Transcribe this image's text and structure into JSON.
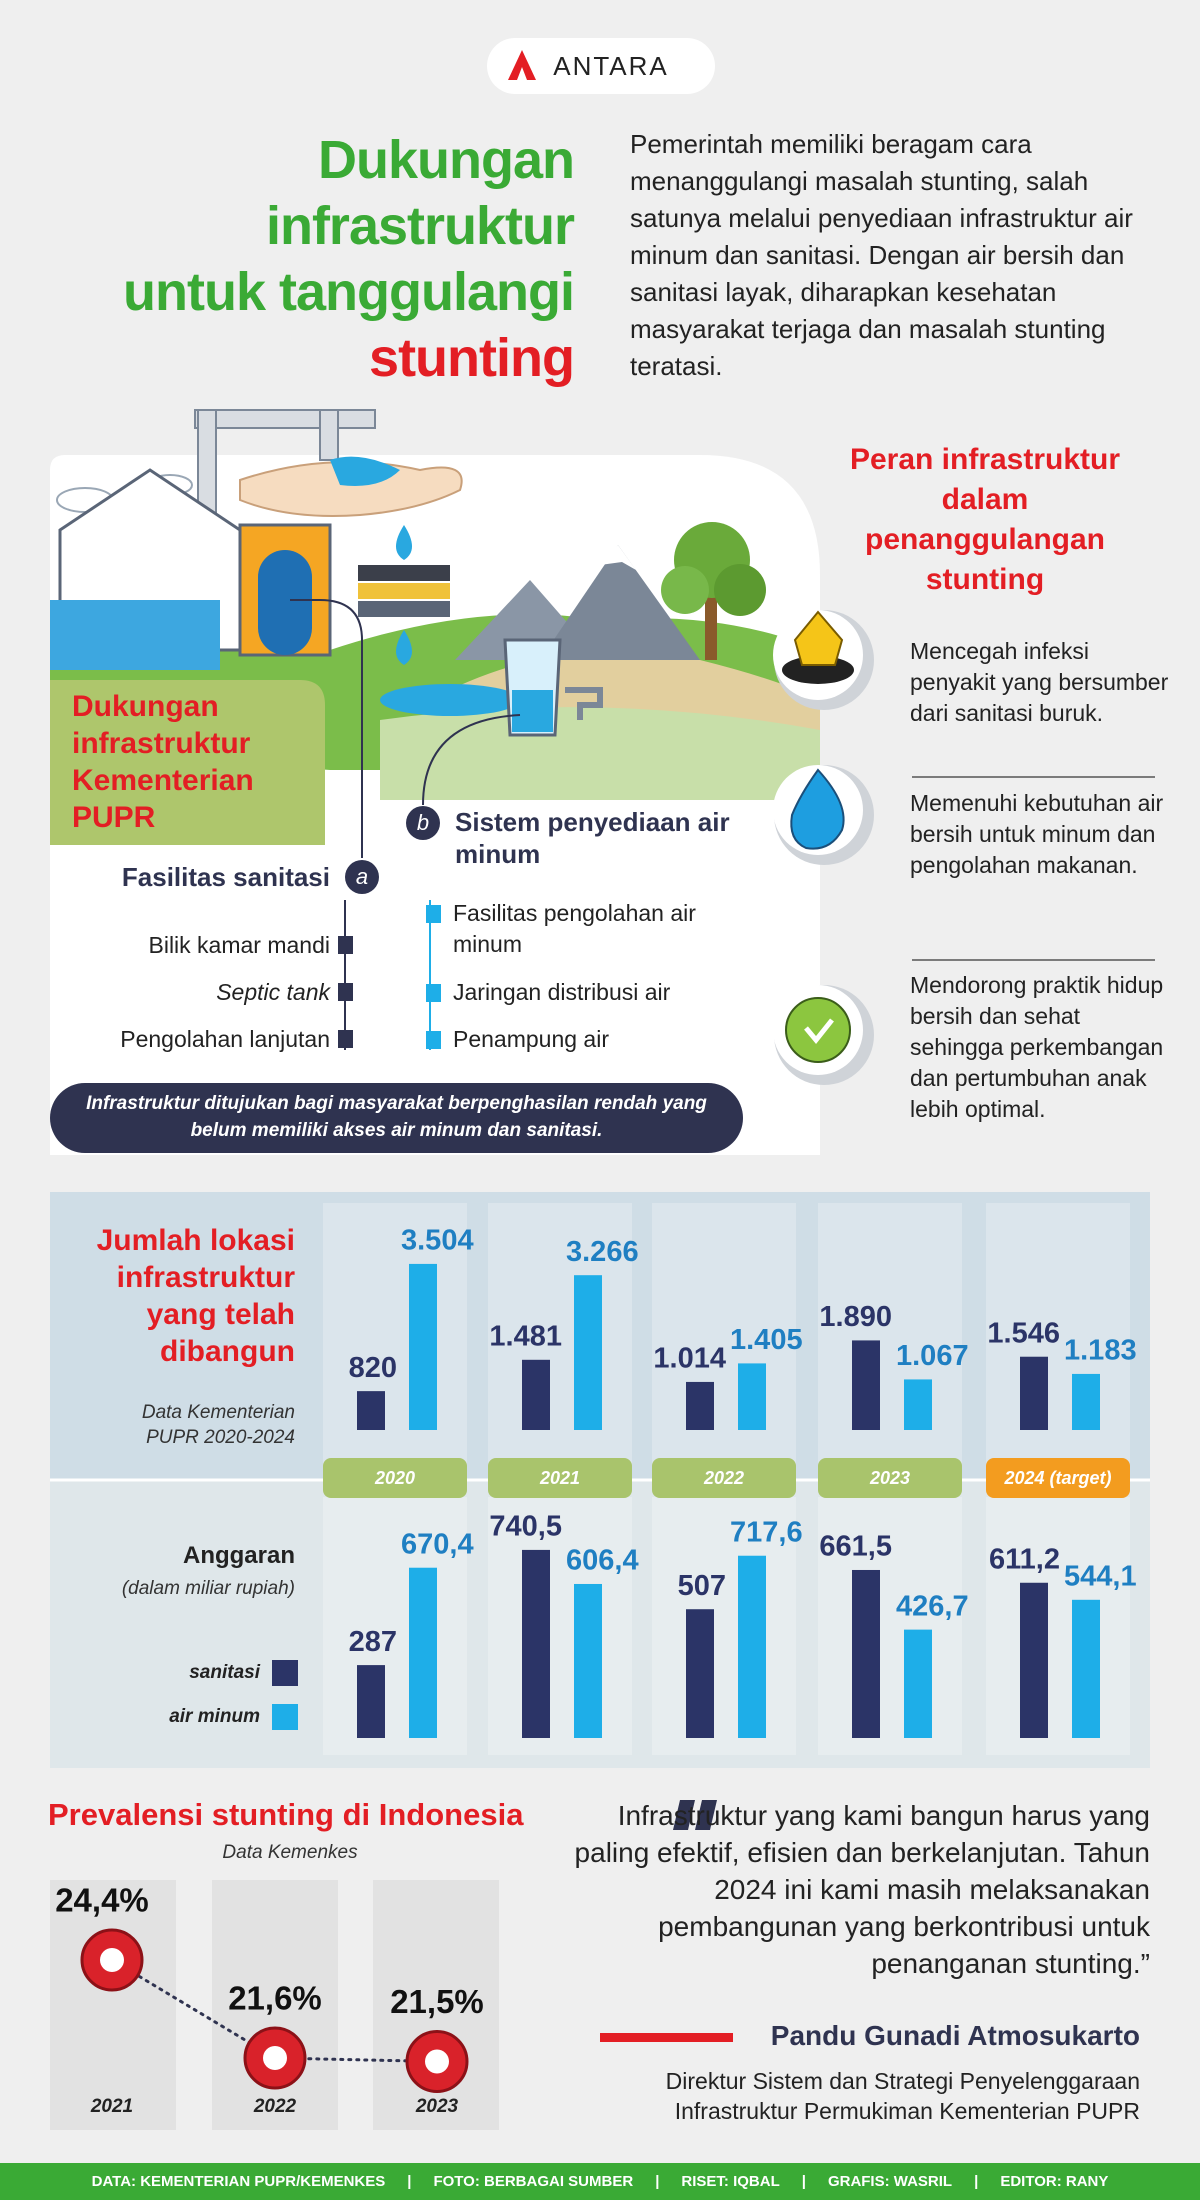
{
  "header": {
    "logo": "ANTARA",
    "title_lines": [
      "Dukungan",
      "infrastruktur",
      "untuk tanggulangi",
      "stunting"
    ],
    "intro": "Pemerintah memiliki beragam cara menanggulangi masalah stunting, salah satunya melalui penyediaan infrastruktur air minum dan sanitasi. Dengan air bersih dan sanitasi layak, diharapkan kesehatan masyarakat terjaga dan masalah stunting teratasi."
  },
  "support": {
    "title": "Dukungan infrastruktur Kementerian PUPR",
    "sanitation": {
      "letter": "a",
      "title": "Fasilitas sanitasi",
      "items": [
        "Bilik kamar mandi",
        "Septic tank",
        "Pengolahan lanjutan"
      ]
    },
    "water": {
      "letter": "b",
      "title": "Sistem penyediaan air minum",
      "items": [
        "Fasilitas pengolahan air minum",
        "Jaringan distribusi air",
        "Penampung air"
      ]
    },
    "note": "Infrastruktur ditujukan bagi masyarakat berpenghasilan rendah yang belum memiliki akses air minum dan sanitasi."
  },
  "role": {
    "title": "Peran infrastruktur dalam penanggulangan stunting",
    "items": [
      "Mencegah infeksi penyakit yang bersumber dari sanitasi buruk.",
      "Memenuhi kebutuhan air bersih untuk minum dan pengolahan makanan.",
      "Mendorong praktik hidup bersih dan sehat sehingga perkembangan dan pertumbuhan anak lebih optimal."
    ]
  },
  "chart_data": [
    {
      "type": "bar",
      "title": "Jumlah lokasi infrastruktur yang telah dibangun",
      "subtitle": "Data Kementerian PUPR 2020-2024",
      "categories": [
        "2020",
        "2021",
        "2022",
        "2023",
        "2024 (target)"
      ],
      "category_colors": [
        "#a9c46c",
        "#a9c46c",
        "#a9c46c",
        "#a9c46c",
        "#f39c1f"
      ],
      "series": [
        {
          "color": "#2b3467",
          "values": [
            820,
            1481,
            1014,
            1890,
            1546
          ],
          "value_labels": [
            "820",
            "1.481",
            "1.014",
            "1.890",
            "1.546"
          ]
        },
        {
          "color": "#1eaee8",
          "values": [
            3504,
            3266,
            1405,
            1067,
            1183
          ],
          "value_labels": [
            "3.504",
            "3.266",
            "1.405",
            "1.067",
            "1.183"
          ]
        }
      ]
    },
    {
      "type": "bar",
      "title": "Anggaran",
      "subtitle": "(dalam miliar rupiah)",
      "series": [
        {
          "name": "sanitasi",
          "color": "#2b3467",
          "values": [
            287,
            740.5,
            507,
            661.5,
            611.2
          ],
          "value_labels": [
            "287",
            "740,5",
            "507",
            "661,5",
            "611,2"
          ]
        },
        {
          "name": "air minum",
          "color": "#1eaee8",
          "values": [
            670.4,
            606.4,
            717.6,
            426.7,
            544.1
          ],
          "value_labels": [
            "670,4",
            "606,4",
            "717,6",
            "426,7",
            "544,1"
          ]
        }
      ]
    },
    {
      "type": "line",
      "title": "Prevalensi stunting di Indonesia",
      "subtitle": "Data Kemenkes",
      "categories": [
        "2021",
        "2022",
        "2023"
      ],
      "values": [
        24.4,
        21.6,
        21.5
      ],
      "value_labels": [
        "24,4%",
        "21,6%",
        "21,5%"
      ],
      "color": "#d9222a"
    }
  ],
  "quote": {
    "text": "Infrastruktur yang kami bangun harus yang paling efektif, efisien dan berkelanjutan. Tahun 2024 ini kami masih melaksanakan pembangunan yang berkontribusi untuk penanganan stunting.”",
    "author": "Pandu Gunadi Atmosukarto",
    "role": "Direktur Sistem dan Strategi Penyelenggaraan Infrastruktur Permukiman Kementerian PUPR"
  },
  "footer": [
    "DATA: KEMENTERIAN PUPR/KEMENKES",
    "FOTO: BERBAGAI SUMBER",
    "RISET: IQBAL",
    "GRAFIS: WASRIL",
    "EDITOR: RANY"
  ]
}
